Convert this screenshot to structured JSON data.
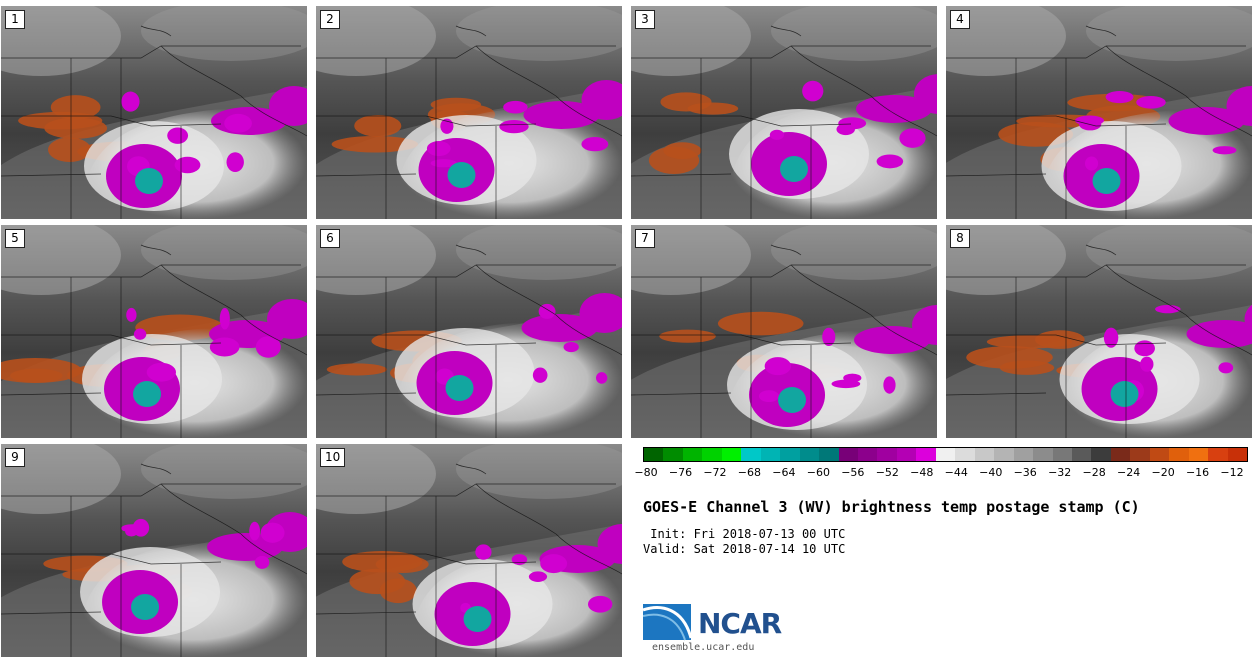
{
  "panels": [
    {
      "label": "1"
    },
    {
      "label": "2"
    },
    {
      "label": "3"
    },
    {
      "label": "4"
    },
    {
      "label": "5"
    },
    {
      "label": "6"
    },
    {
      "label": "7"
    },
    {
      "label": "8"
    },
    {
      "label": "9"
    },
    {
      "label": "10"
    }
  ],
  "colorbar": {
    "colors": [
      "#006400",
      "#008c00",
      "#00b400",
      "#00d200",
      "#00f000",
      "#00c8c8",
      "#00b4b4",
      "#00a0a0",
      "#008c8c",
      "#007878",
      "#780078",
      "#8c008c",
      "#a000a0",
      "#b400b4",
      "#dc00dc",
      "#f0f0f0",
      "#dcdcdc",
      "#c8c8c8",
      "#b4b4b4",
      "#a0a0a0",
      "#8c8c8c",
      "#787878",
      "#5a5a5a",
      "#3c3c3c",
      "#7a2a1a",
      "#9c3a1a",
      "#c04a14",
      "#e0600c",
      "#f07010",
      "#d84010",
      "#c83008"
    ],
    "ticks": [
      "−80",
      "−76",
      "−72",
      "−68",
      "−64",
      "−60",
      "−56",
      "−52",
      "−48",
      "−44",
      "−40",
      "−36",
      "−32",
      "−28",
      "−24",
      "−20",
      "−16",
      "−12"
    ]
  },
  "title": "GOES-E Channel 3 (WV) brightness temp postage stamp (C)",
  "init": " Init: Fri 2018-07-13 00 UTC",
  "valid": "Valid: Sat 2018-07-14 10 UTC",
  "logo_text": "NCAR",
  "url": "ensemble.ucar.edu"
}
